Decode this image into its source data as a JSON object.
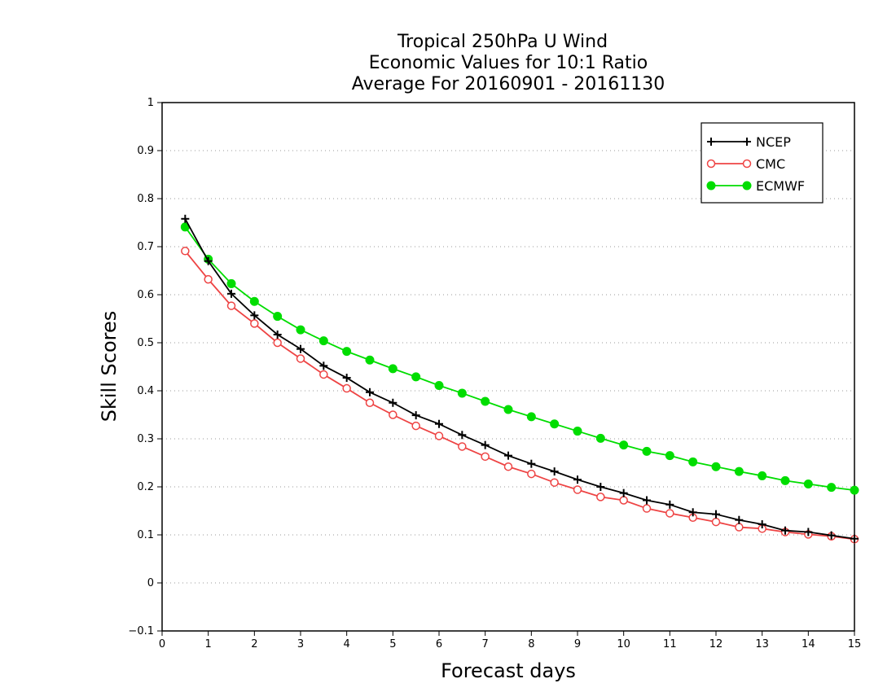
{
  "chart_data": {
    "type": "line",
    "title_lines": [
      "Tropical 250hPa U Wind",
      "Economic Values for 10:1 Ratio",
      "Average For 20160901 - 20161130"
    ],
    "xlabel": "Forecast days",
    "ylabel": "Skill Scores",
    "xlim": [
      0,
      15
    ],
    "ylim": [
      -0.1,
      1
    ],
    "xticks": [
      0,
      1,
      2,
      3,
      4,
      5,
      6,
      7,
      8,
      9,
      10,
      11,
      12,
      13,
      14,
      15
    ],
    "xtick_labels": [
      "0",
      "1",
      "2",
      "3",
      "4",
      "5",
      "6",
      "7",
      "8",
      "9",
      "10",
      "11",
      "12",
      "13",
      "14",
      "15"
    ],
    "yticks": [
      -0.1,
      0,
      0.1,
      0.2,
      0.3,
      0.4,
      0.5,
      0.6,
      0.7,
      0.8,
      0.9,
      1
    ],
    "ytick_labels": [
      "−0.1",
      "0",
      "0.1",
      "0.2",
      "0.3",
      "0.4",
      "0.5",
      "0.6",
      "0.7",
      "0.8",
      "0.9",
      "1"
    ],
    "grid": "horizontal-dotted",
    "legend_position": "top-right",
    "x": [
      0.5,
      1,
      1.5,
      2,
      2.5,
      3,
      3.5,
      4,
      4.5,
      5,
      5.5,
      6,
      6.5,
      7,
      7.5,
      8,
      8.5,
      9,
      9.5,
      10,
      10.5,
      11,
      11.5,
      12,
      12.5,
      13,
      13.5,
      14,
      14.5,
      15
    ],
    "series": [
      {
        "name": "NCEP",
        "color": "#000000",
        "marker": "plus",
        "values": [
          0.758,
          0.67,
          0.602,
          0.557,
          0.517,
          0.487,
          0.452,
          0.427,
          0.397,
          0.375,
          0.349,
          0.331,
          0.308,
          0.287,
          0.265,
          0.248,
          0.232,
          0.215,
          0.2,
          0.187,
          0.172,
          0.163,
          0.147,
          0.143,
          0.131,
          0.122,
          0.109,
          0.106,
          0.099,
          0.092
        ]
      },
      {
        "name": "CMC",
        "color": "#ee4444",
        "marker": "open-circle",
        "values": [
          0.691,
          0.632,
          0.577,
          0.54,
          0.5,
          0.467,
          0.434,
          0.405,
          0.375,
          0.35,
          0.327,
          0.306,
          0.284,
          0.263,
          0.242,
          0.227,
          0.209,
          0.194,
          0.179,
          0.172,
          0.155,
          0.145,
          0.136,
          0.127,
          0.116,
          0.113,
          0.106,
          0.101,
          0.097,
          0.091
        ]
      },
      {
        "name": "ECMWF",
        "color": "#00dd00",
        "marker": "filled-circle",
        "values": [
          0.741,
          0.674,
          0.623,
          0.586,
          0.555,
          0.527,
          0.504,
          0.482,
          0.464,
          0.446,
          0.429,
          0.411,
          0.395,
          0.378,
          0.361,
          0.346,
          0.331,
          0.316,
          0.301,
          0.287,
          0.274,
          0.265,
          0.252,
          0.242,
          0.232,
          0.223,
          0.213,
          0.206,
          0.199,
          0.193
        ]
      }
    ]
  }
}
